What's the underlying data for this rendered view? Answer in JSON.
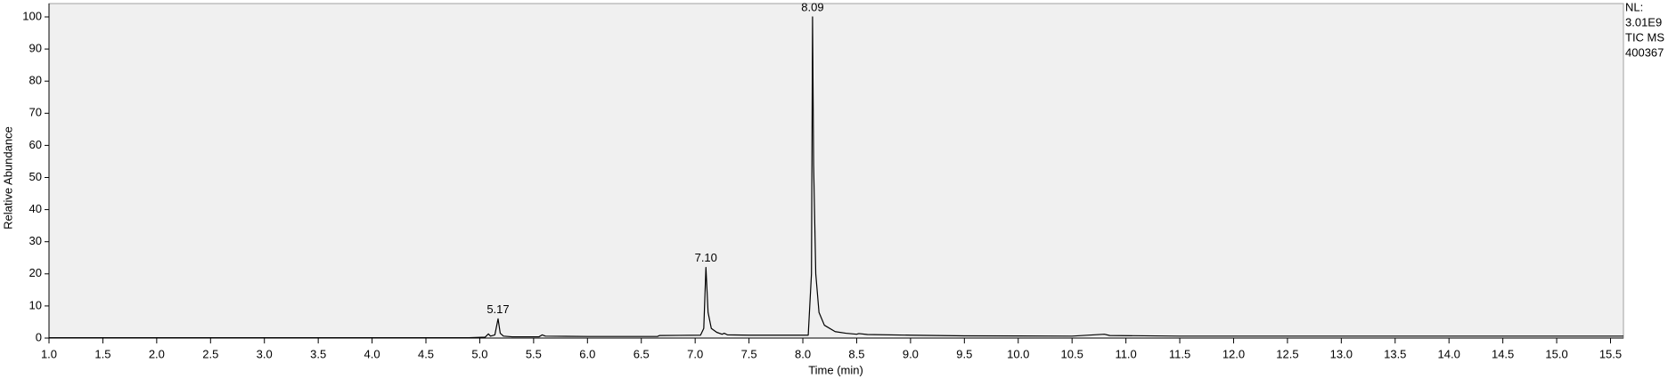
{
  "chart_data": {
    "type": "line",
    "x_label": "Time (min)",
    "y_label": "Relative Abundance",
    "info": [
      "NL:",
      "3.01E9",
      "TIC  MS",
      "400367"
    ],
    "plot_background": "#f0f0f0",
    "xlim": [
      1.0,
      15.62
    ],
    "ylim": [
      0,
      100
    ],
    "xticks": [
      {
        "value": 1.0,
        "label": "1.0"
      },
      1.5,
      {
        "value": 2.0,
        "label": "2.0"
      },
      2.5,
      {
        "value": 3.0,
        "label": "3.0"
      },
      3.5,
      {
        "value": 4.0,
        "label": "4.0"
      },
      4.5,
      {
        "value": 5.0,
        "label": "5.0"
      },
      5.5,
      {
        "value": 6.0,
        "label": "6.0"
      },
      6.5,
      {
        "value": 7.0,
        "label": "7.0"
      },
      7.5,
      {
        "value": 8.0,
        "label": "8.0"
      },
      8.5,
      {
        "value": 9.0,
        "label": "9.0"
      },
      9.5,
      {
        "value": 10.0,
        "label": "10.0"
      },
      10.5,
      {
        "value": 11.0,
        "label": "11.0"
      },
      11.5,
      {
        "value": 12.0,
        "label": "12.0"
      },
      12.5,
      {
        "value": 13.0,
        "label": "13.0"
      },
      13.5,
      {
        "value": 14.0,
        "label": "14.0"
      },
      14.5,
      {
        "value": 15.0,
        "label": "15.0"
      },
      15.5
    ],
    "yticks": [
      0,
      10,
      20,
      30,
      40,
      50,
      60,
      70,
      80,
      90,
      100
    ],
    "peak_labels": [
      {
        "x": 5.17,
        "y": 6,
        "label": "5.17"
      },
      {
        "x": 7.1,
        "y": 22,
        "label": "7.10"
      },
      {
        "x": 8.09,
        "y": 100,
        "label": "8.09"
      }
    ],
    "series": [
      {
        "color": "#000000",
        "x": [
          1.0,
          4.9,
          5.05,
          5.08,
          5.1,
          5.14,
          5.17,
          5.19,
          5.22,
          5.3,
          5.55,
          5.58,
          5.61,
          6.0,
          6.65,
          6.67,
          7.05,
          7.08,
          7.1,
          7.12,
          7.15,
          7.2,
          7.25,
          7.27,
          7.3,
          7.5,
          8.05,
          8.08,
          8.09,
          8.1,
          8.12,
          8.15,
          8.2,
          8.3,
          8.4,
          8.5,
          8.52,
          8.6,
          9.0,
          9.5,
          10.5,
          10.8,
          10.85,
          11.5,
          15.62
        ],
        "values": [
          0.1,
          0.1,
          0.3,
          1.3,
          0.6,
          1.0,
          6.0,
          1.5,
          0.6,
          0.4,
          0.4,
          1.0,
          0.6,
          0.5,
          0.5,
          0.8,
          0.9,
          3,
          22,
          8,
          3,
          1.8,
          1.2,
          1.5,
          1.0,
          0.9,
          0.9,
          20,
          100,
          54,
          20,
          8,
          4,
          2,
          1.5,
          1.2,
          1.4,
          1.1,
          0.9,
          0.7,
          0.6,
          1.2,
          0.8,
          0.6,
          0.6
        ]
      }
    ]
  }
}
